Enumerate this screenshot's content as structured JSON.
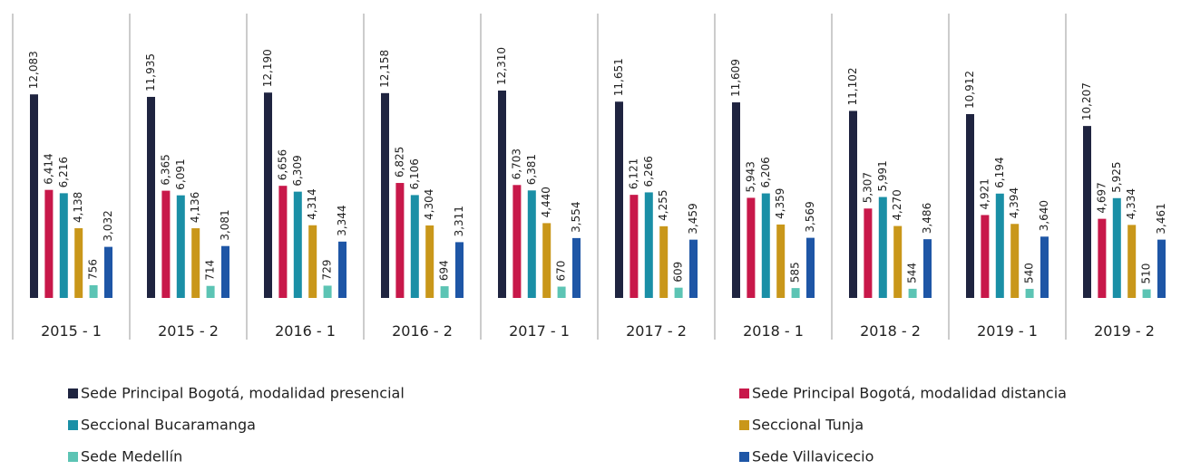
{
  "chart_data": {
    "type": "bar",
    "categories": [
      "2015 - 1",
      "2015 - 2",
      "2016 - 1",
      "2016 - 2",
      "2017 - 1",
      "2017 - 2",
      "2018 - 1",
      "2018 - 2",
      "2019 - 1",
      "2019 - 2"
    ],
    "series": [
      {
        "name": "Sede Principal Bogotá, modalidad presencial",
        "color": "#1f2440",
        "values": [
          12083,
          11935,
          12190,
          12158,
          12310,
          11651,
          11609,
          11102,
          10912,
          10207
        ],
        "value_labels": [
          "12,083",
          "11,935",
          "12,190",
          "12,158",
          "12,310",
          "11,651",
          "11,609",
          "11,102",
          "10,912",
          "10,207"
        ]
      },
      {
        "name": "Sede Principal Bogotá, modalidad distancia",
        "color": "#c8184a",
        "values": [
          6414,
          6365,
          6656,
          6825,
          6703,
          6121,
          5943,
          5307,
          4921,
          4697
        ],
        "value_labels": [
          "6,414",
          "6,365",
          "6,656",
          "6,825",
          "6,703",
          "6,121",
          "5,943",
          "5,307",
          "4,921",
          "4,697"
        ]
      },
      {
        "name": "Seccional Bucaramanga",
        "color": "#1a8fa6",
        "values": [
          6216,
          6091,
          6309,
          6106,
          6381,
          6266,
          6206,
          5991,
          6194,
          5925
        ],
        "value_labels": [
          "6,216",
          "6,091",
          "6,309",
          "6,106",
          "6,381",
          "6,266",
          "6,206",
          "5,991",
          "6,194",
          "5,925"
        ]
      },
      {
        "name": "Seccional Tunja",
        "color": "#c9971a",
        "values": [
          4138,
          4136,
          4314,
          4304,
          4440,
          4255,
          4359,
          4270,
          4394,
          4334
        ],
        "value_labels": [
          "4,138",
          "4,136",
          "4,314",
          "4,304",
          "4,440",
          "4,255",
          "4,359",
          "4,270",
          "4,394",
          "4,334"
        ]
      },
      {
        "name": "Sede Medellín",
        "color": "#5cc4b4",
        "values": [
          756,
          714,
          729,
          694,
          670,
          609,
          585,
          544,
          540,
          510
        ]
      },
      {
        "name": "Sede Villavicecio",
        "color": "#1e56a6",
        "values": [
          3032,
          3081,
          3344,
          3311,
          3554,
          3459,
          3569,
          3486,
          3640,
          3461
        ],
        "value_labels": [
          "3,032",
          "3,081",
          "3,344",
          "3,311",
          "3,554",
          "3,459",
          "3,569",
          "3,486",
          "3,640",
          "3,461"
        ]
      }
    ]
  }
}
